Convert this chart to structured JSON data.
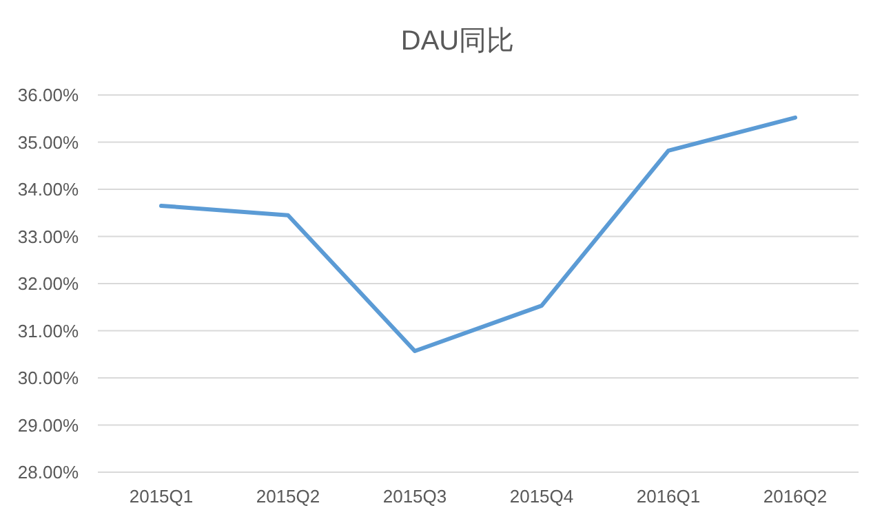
{
  "chart_data": {
    "type": "line",
    "title": "DAU同比",
    "categories": [
      "2015Q1",
      "2015Q2",
      "2015Q3",
      "2015Q4",
      "2016Q1",
      "2016Q2"
    ],
    "values": [
      33.65,
      33.45,
      30.57,
      31.53,
      34.82,
      35.52
    ],
    "color": "#5b9bd5",
    "ylim": [
      28,
      36
    ],
    "yticks": [
      {
        "value": 28,
        "label": "28.00%"
      },
      {
        "value": 29,
        "label": "29.00%"
      },
      {
        "value": 30,
        "label": "30.00%"
      },
      {
        "value": 31,
        "label": "31.00%"
      },
      {
        "value": 32,
        "label": "32.00%"
      },
      {
        "value": 33,
        "label": "33.00%"
      },
      {
        "value": 34,
        "label": "34.00%"
      },
      {
        "value": 35,
        "label": "35.00%"
      },
      {
        "value": 36,
        "label": "36.00%"
      }
    ],
    "grid": "y",
    "marker": "none",
    "line_style": "solid"
  }
}
